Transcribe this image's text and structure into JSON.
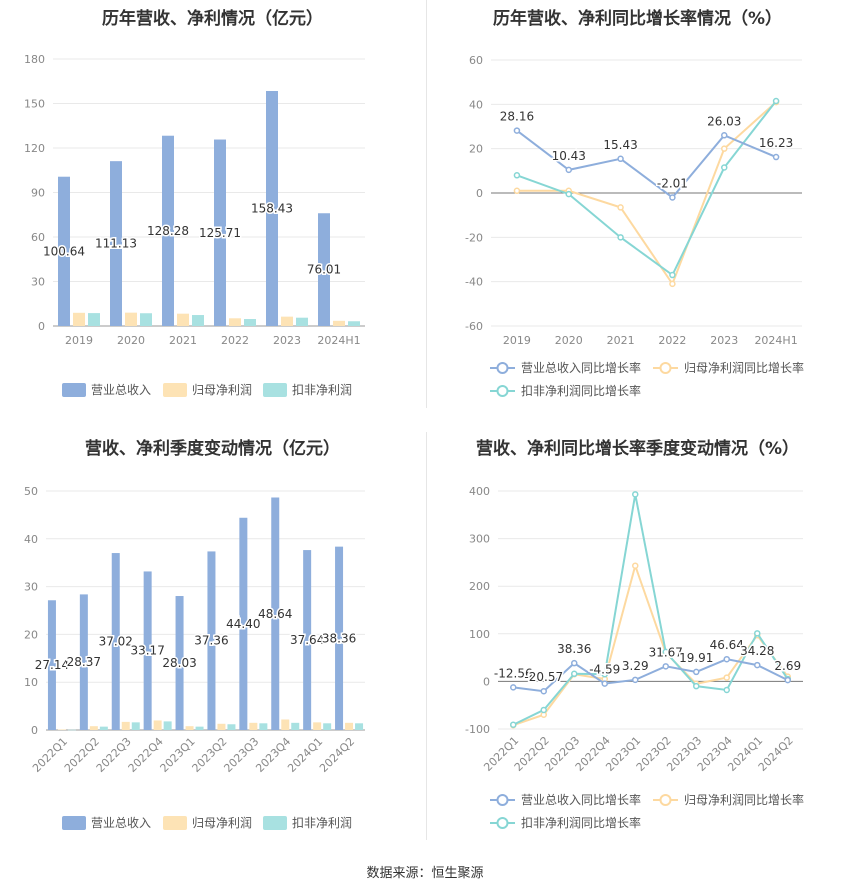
{
  "source_label": "数据来源：恒生聚源",
  "colors": {
    "revenue": "#8eaedc",
    "net_profit": "#fde3b5",
    "deducted": "#a8e1e1",
    "revenue_line": "#8eaedc",
    "net_profit_line": "#fdd9a0",
    "deducted_line": "#86d6d4"
  },
  "chart_data": [
    {
      "type": "bar",
      "title": "历年营收、净利情况（亿元）",
      "categories": [
        "2019",
        "2020",
        "2021",
        "2022",
        "2023",
        "2024H1"
      ],
      "ylim": [
        0,
        180
      ],
      "yticks": [
        0,
        30,
        60,
        90,
        120,
        150,
        180
      ],
      "series": [
        {
          "name": "营业总收入",
          "values": [
            100.64,
            111.13,
            128.28,
            125.71,
            158.43,
            76.01
          ],
          "labels": [
            "100.64",
            "111.13",
            "128.28",
            "125.71",
            "158.43",
            "76.01"
          ]
        },
        {
          "name": "归母净利润",
          "values": [
            8.9,
            9.0,
            8.3,
            5.2,
            6.3,
            3.5
          ]
        },
        {
          "name": "扣非净利润",
          "values": [
            8.7,
            8.6,
            7.4,
            4.7,
            5.6,
            3.2
          ]
        }
      ],
      "legend": "bottom",
      "grid": true
    },
    {
      "type": "line",
      "title": "历年营收、净利同比增长率情况（%）",
      "categories": [
        "2019",
        "2020",
        "2021",
        "2022",
        "2023",
        "2024H1"
      ],
      "ylim": [
        -60,
        60
      ],
      "yticks": [
        -60,
        -40,
        -20,
        0,
        20,
        40,
        60
      ],
      "series": [
        {
          "name": "营业总收入同比增长率",
          "values": [
            28.16,
            10.43,
            15.43,
            -2.01,
            26.03,
            16.23
          ],
          "labels": [
            "28.16",
            "10.43",
            "15.43",
            "-2.01",
            "26.03",
            "16.23"
          ]
        },
        {
          "name": "归母净利润同比增长率",
          "values": [
            1.0,
            1.0,
            -6.5,
            -41.0,
            20.0,
            41.0
          ]
        },
        {
          "name": "扣非净利润同比增长率",
          "values": [
            8.0,
            -0.5,
            -20.0,
            -37.0,
            11.5,
            41.5
          ]
        }
      ],
      "legend": "bottom",
      "grid": true
    },
    {
      "type": "bar",
      "title": "营收、净利季度变动情况（亿元）",
      "categories": [
        "2022Q1",
        "2022Q2",
        "2022Q3",
        "2022Q4",
        "2023Q1",
        "2023Q2",
        "2023Q3",
        "2023Q4",
        "2024Q1",
        "2024Q2"
      ],
      "ylim": [
        0,
        50
      ],
      "yticks": [
        0,
        10,
        20,
        30,
        40,
        50
      ],
      "series": [
        {
          "name": "营业总收入",
          "values": [
            27.14,
            28.37,
            37.02,
            33.17,
            28.03,
            37.36,
            44.4,
            48.64,
            37.64,
            38.36
          ],
          "labels": [
            "27.14",
            "28.37",
            "37.02",
            "33.17",
            "28.03",
            "37.36",
            "44.40",
            "48.64",
            "37.64",
            "38.36"
          ]
        },
        {
          "name": "归母净利润",
          "values": [
            0.1,
            0.8,
            1.7,
            2.0,
            0.8,
            1.3,
            1.5,
            2.2,
            1.6,
            1.5
          ]
        },
        {
          "name": "扣非净利润",
          "values": [
            0.05,
            0.7,
            1.6,
            1.8,
            0.7,
            1.2,
            1.4,
            1.5,
            1.4,
            1.4
          ]
        }
      ],
      "legend": "bottom",
      "grid": true
    },
    {
      "type": "line",
      "title": "营收、净利同比增长率季度变动情况（%）",
      "categories": [
        "2022Q1",
        "2022Q2",
        "2022Q3",
        "2022Q4",
        "2023Q1",
        "2023Q2",
        "2023Q3",
        "2023Q4",
        "2024Q1",
        "2024Q2"
      ],
      "ylim": [
        -100,
        400
      ],
      "yticks": [
        -100,
        0,
        100,
        200,
        300,
        400
      ],
      "series": [
        {
          "name": "营业总收入同比增长率",
          "values": [
            -12.56,
            -20.57,
            38.36,
            -4.59,
            3.29,
            31.67,
            19.91,
            46.64,
            34.28,
            2.69
          ],
          "labels": [
            "-12.56",
            "-20.57",
            "38.36",
            "-4.59",
            "3.29",
            "31.67",
            "19.91",
            "46.64",
            "34.28",
            "2.69"
          ]
        },
        {
          "name": "归母净利润同比增长率",
          "values": [
            -92,
            -70,
            15,
            5,
            243,
            60,
            -5,
            8,
            97,
            10
          ]
        },
        {
          "name": "扣非净利润同比增长率",
          "values": [
            -91,
            -60,
            16,
            15,
            393,
            62,
            -10,
            -18,
            101,
            5
          ]
        }
      ],
      "legend": "bottom",
      "grid": true
    }
  ]
}
